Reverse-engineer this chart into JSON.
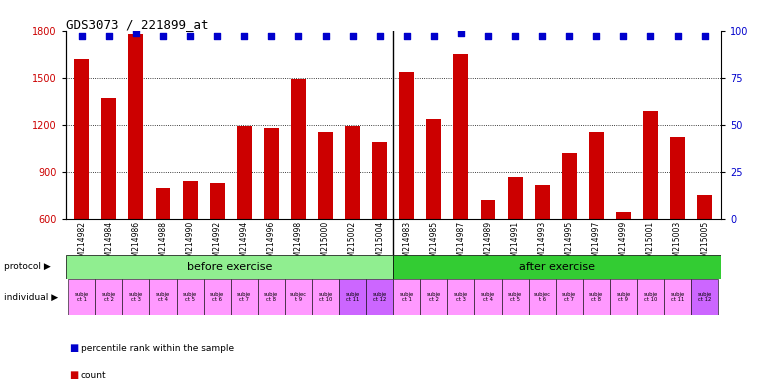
{
  "title": "GDS3073 / 221899_at",
  "samples": [
    "GSM214982",
    "GSM214984",
    "GSM214986",
    "GSM214988",
    "GSM214990",
    "GSM214992",
    "GSM214994",
    "GSM214996",
    "GSM214998",
    "GSM215000",
    "GSM215002",
    "GSM215004",
    "GSM214983",
    "GSM214985",
    "GSM214987",
    "GSM214989",
    "GSM214991",
    "GSM214993",
    "GSM214995",
    "GSM214997",
    "GSM214999",
    "GSM215001",
    "GSM215003",
    "GSM215005"
  ],
  "counts": [
    1620,
    1370,
    1780,
    800,
    840,
    830,
    1195,
    1180,
    1490,
    1155,
    1195,
    1090,
    1535,
    1240,
    1650,
    720,
    870,
    820,
    1020,
    1155,
    645,
    1290,
    1125,
    755
  ],
  "percentile_ranks": [
    97,
    97,
    99,
    97,
    97,
    97,
    97,
    97,
    97,
    97,
    97,
    97,
    97,
    97,
    99,
    97,
    97,
    97,
    97,
    97,
    97,
    97,
    97,
    97
  ],
  "bar_color": "#cc0000",
  "dot_color": "#0000cc",
  "ylim_left": [
    600,
    1800
  ],
  "ylim_right": [
    0,
    100
  ],
  "yticks_left": [
    600,
    900,
    1200,
    1500,
    1800
  ],
  "yticks_right": [
    0,
    25,
    50,
    75,
    100
  ],
  "grid_values": [
    900,
    1200,
    1500
  ],
  "protocol_before_label": "before exercise",
  "protocol_before_color": "#90ee90",
  "protocol_after_label": "after exercise",
  "protocol_after_color": "#33cc33",
  "indiv_colors_before": [
    "#ff99ff",
    "#ff99ff",
    "#ff99ff",
    "#ff99ff",
    "#ff99ff",
    "#ff99ff",
    "#ff99ff",
    "#ff99ff",
    "#ff99ff",
    "#ff99ff",
    "#cc66ff",
    "#cc66ff"
  ],
  "indiv_colors_after": [
    "#ff99ff",
    "#ff99ff",
    "#ff99ff",
    "#ff99ff",
    "#ff99ff",
    "#ff99ff",
    "#ff99ff",
    "#ff99ff",
    "#ff99ff",
    "#ff99ff",
    "#ff99ff",
    "#cc66ff"
  ],
  "indiv_labels_before": [
    "subje\nct 1",
    "subje\nct 2",
    "subje\nct 3",
    "subje\nct 4",
    "subje\nct 5",
    "subje\nct 6",
    "subje\nct 7",
    "subje\nct 8",
    "subjec\nt 9",
    "subje\nct 10",
    "subje\nct 11",
    "subje\nct 12"
  ],
  "indiv_labels_after": [
    "subje\nct 1",
    "subje\nct 2",
    "subje\nct 3",
    "subje\nct 4",
    "subje\nct 5",
    "subjec\nt 6",
    "subje\nct 7",
    "subje\nct 8",
    "subje\nct 9",
    "subje\nct 10",
    "subje\nct 11",
    "subje\nct 12"
  ],
  "xtick_bg_color": "#cccccc",
  "main_bg_color": "#ffffff",
  "legend_count_color": "#cc0000",
  "legend_dot_color": "#0000cc",
  "bar_width": 0.55,
  "n_before": 12,
  "n_after": 12
}
